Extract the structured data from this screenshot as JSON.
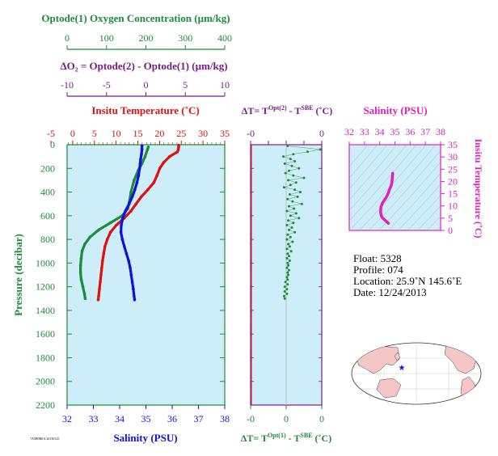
{
  "colors": {
    "green": "#1e8a3a",
    "purple": "#7a1a8a",
    "red": "#e01010",
    "blue": "#1010e0",
    "magenta": "#e020c0",
    "panel_bg": "#cdeef8",
    "land": "#f5c6c6"
  },
  "axes_text": {
    "oxygen_title": "Optode(1) Oxygen Concentration (µm/kg)",
    "oxygen_ticks": [
      "0",
      "100",
      "200",
      "300",
      "400"
    ],
    "delta_o2_title": "ΔO₂ = Optode(2) - Optode(1)   (µm/kg)",
    "delta_o2_ticks": [
      "-10",
      "-5",
      "0",
      "5",
      "10"
    ],
    "temp_title": "Insitu Temperature (˚C)",
    "temp_ticks": [
      "-5",
      "0",
      "5",
      "10",
      "15",
      "20",
      "25",
      "30",
      "35"
    ],
    "pressure_title": "Pressure (decibar)",
    "pressure_ticks": [
      "0",
      "200",
      "400",
      "600",
      "800",
      "1000",
      "1200",
      "1400",
      "1600",
      "1800",
      "2000",
      "2200"
    ],
    "salinity_bottom_title": "Salinity (PSU)",
    "salinity_bottom_ticks": [
      "32",
      "33",
      "34",
      "35",
      "36",
      "37",
      "38"
    ],
    "dt_top_title_a": "ΔT= T",
    "dt_top_title_sup1": "Opt(2)",
    "dt_top_title_mid": " - T",
    "dt_top_title_sup2": "SBE",
    "dt_top_title_end": " (˚C)",
    "dt_top_ticks": [
      "-0",
      "0"
    ],
    "dt_bottom_title_a": "ΔT= T",
    "dt_bottom_title_sup1": "Opt(1)",
    "dt_bottom_title_mid": " - T",
    "dt_bottom_title_sup2": "SBE",
    "dt_bottom_title_end": " (˚C)",
    "dt_bottom_ticks": [
      "-0",
      "0",
      "0"
    ],
    "ts_salinity_title": "Salinity (PSU)",
    "ts_salinity_ticks": [
      "32",
      "33",
      "34",
      "35",
      "36",
      "37",
      "38"
    ],
    "ts_temp_title": "Insitu Temperature (˚C)",
    "ts_temp_ticks": [
      "0",
      "5",
      "10",
      "15",
      "20",
      "25",
      "30",
      "35"
    ],
    "tiny_label": "7A5B9REA 20130125"
  },
  "float_info": {
    "float": "Float:  5328",
    "profile": "Profile:  074",
    "location": "Location:  25.9˚N  145.6˚E",
    "date": "Date:  12/24/2013"
  },
  "chart_data": [
    {
      "type": "line",
      "title": "",
      "ylabel": "Pressure (decibar)",
      "ylim": [
        2200,
        0
      ],
      "series": [
        {
          "name": "Optode(1) Oxygen Concentration (µm/kg)",
          "color": "#1e8a3a",
          "xlim": [
            0,
            400
          ],
          "points": [
            [
              206,
              20
            ],
            [
              204,
              40
            ],
            [
              198,
              100
            ],
            [
              190,
              160
            ],
            [
              180,
              220
            ],
            [
              170,
              300
            ],
            [
              162,
              400
            ],
            [
              158,
              480
            ],
            [
              154,
              540
            ],
            [
              140,
              600
            ],
            [
              110,
              660
            ],
            [
              80,
              720
            ],
            [
              58,
              780
            ],
            [
              45,
              840
            ],
            [
              38,
              900
            ],
            [
              36,
              960
            ],
            [
              34,
              1020
            ],
            [
              34,
              1080
            ],
            [
              36,
              1140
            ],
            [
              40,
              1200
            ],
            [
              44,
              1260
            ],
            [
              46,
              1300
            ]
          ]
        },
        {
          "name": "Insitu Temperature (˚C)",
          "color": "#e01010",
          "xlim": [
            -5,
            35
          ],
          "points": [
            [
              23.3,
              5
            ],
            [
              23.3,
              20
            ],
            [
              23.2,
              40
            ],
            [
              23.0,
              60
            ],
            [
              21.0,
              100
            ],
            [
              19.5,
              150
            ],
            [
              18.5,
              200
            ],
            [
              17.8,
              260
            ],
            [
              17.0,
              320
            ],
            [
              15.5,
              380
            ],
            [
              13.8,
              440
            ],
            [
              12.5,
              500
            ],
            [
              11.2,
              560
            ],
            [
              9.5,
              620
            ],
            [
              7.5,
              680
            ],
            [
              6.0,
              740
            ],
            [
              5.2,
              800
            ],
            [
              4.6,
              860
            ],
            [
              4.3,
              920
            ],
            [
              4.0,
              980
            ],
            [
              3.8,
              1040
            ],
            [
              3.6,
              1100
            ],
            [
              3.4,
              1160
            ],
            [
              3.2,
              1220
            ],
            [
              3.0,
              1280
            ],
            [
              2.9,
              1310
            ]
          ]
        },
        {
          "name": "Salinity (PSU)",
          "color": "#1010e0",
          "xlim": [
            32,
            38
          ],
          "points": [
            [
              34.85,
              10
            ],
            [
              34.85,
              40
            ],
            [
              34.83,
              80
            ],
            [
              34.8,
              120
            ],
            [
              34.78,
              160
            ],
            [
              34.76,
              200
            ],
            [
              34.72,
              260
            ],
            [
              34.66,
              320
            ],
            [
              34.58,
              380
            ],
            [
              34.48,
              440
            ],
            [
              34.36,
              500
            ],
            [
              34.22,
              560
            ],
            [
              34.12,
              620
            ],
            [
              34.06,
              680
            ],
            [
              34.05,
              740
            ],
            [
              34.1,
              800
            ],
            [
              34.18,
              860
            ],
            [
              34.26,
              920
            ],
            [
              34.34,
              980
            ],
            [
              34.4,
              1040
            ],
            [
              34.44,
              1100
            ],
            [
              34.48,
              1160
            ],
            [
              34.52,
              1220
            ],
            [
              34.55,
              1280
            ],
            [
              34.57,
              1310
            ]
          ]
        }
      ]
    },
    {
      "type": "scatter",
      "title": "",
      "xlabel": "ΔT= T(Opt(1)) - T(SBE) (˚C)",
      "ylim": [
        2200,
        0
      ],
      "xlim": [
        -0.05,
        0.05
      ],
      "series": [
        {
          "name": "ΔT Opt(1)",
          "color": "#1e8a3a",
          "points": [
            [
              0.002,
              10
            ],
            [
              0.048,
              40
            ],
            [
              0.03,
              60
            ],
            [
              0.01,
              80
            ],
            [
              -0.004,
              100
            ],
            [
              0.006,
              120
            ],
            [
              0.012,
              140
            ],
            [
              -0.002,
              160
            ],
            [
              0.008,
              180
            ],
            [
              0.018,
              200
            ],
            [
              0.004,
              220
            ],
            [
              -0.001,
              240
            ],
            [
              0.01,
              260
            ],
            [
              0.025,
              280
            ],
            [
              0.003,
              300
            ],
            [
              0.014,
              320
            ],
            [
              0.006,
              340
            ],
            [
              -0.003,
              360
            ],
            [
              0.012,
              380
            ],
            [
              0.02,
              400
            ],
            [
              0.005,
              420
            ],
            [
              0.016,
              440
            ],
            [
              0.002,
              460
            ],
            [
              0.009,
              480
            ],
            [
              0.022,
              500
            ],
            [
              0.004,
              520
            ],
            [
              0.011,
              540
            ],
            [
              0.001,
              560
            ],
            [
              0.014,
              580
            ],
            [
              0.006,
              600
            ],
            [
              0.018,
              620
            ],
            [
              0.003,
              640
            ],
            [
              0.01,
              660
            ],
            [
              0.001,
              680
            ],
            [
              0.008,
              700
            ],
            [
              0.004,
              720
            ],
            [
              0.012,
              740
            ],
            [
              0.002,
              760
            ],
            [
              0.006,
              780
            ],
            [
              0.001,
              800
            ],
            [
              0.009,
              820
            ],
            [
              0.003,
              840
            ],
            [
              0.005,
              860
            ],
            [
              0.001,
              880
            ],
            [
              0.007,
              900
            ],
            [
              0.002,
              920
            ],
            [
              0.004,
              940
            ],
            [
              0.001,
              960
            ],
            [
              0.005,
              980
            ],
            [
              0.002,
              1000
            ],
            [
              0.003,
              1020
            ],
            [
              0.001,
              1040
            ],
            [
              0.004,
              1060
            ],
            [
              0.002,
              1080
            ],
            [
              0.003,
              1100
            ],
            [
              0.001,
              1120
            ],
            [
              0.002,
              1140
            ],
            [
              -0.001,
              1160
            ],
            [
              0.002,
              1180
            ],
            [
              -0.002,
              1200
            ],
            [
              0.001,
              1220
            ],
            [
              -0.002,
              1240
            ],
            [
              0.001,
              1260
            ],
            [
              -0.003,
              1280
            ],
            [
              -0.002,
              1300
            ]
          ]
        }
      ]
    },
    {
      "type": "line",
      "title": "",
      "xlabel": "Salinity (PSU)",
      "ylabel": "Insitu Temperature (˚C)",
      "xlim": [
        32,
        38
      ],
      "ylim": [
        0,
        35
      ],
      "series": [
        {
          "name": "T-S profile",
          "color": "#e020c0",
          "points": [
            [
              34.57,
              2.9
            ],
            [
              34.52,
              3.2
            ],
            [
              34.45,
              3.6
            ],
            [
              34.38,
              4.0
            ],
            [
              34.28,
              4.6
            ],
            [
              34.18,
              5.2
            ],
            [
              34.1,
              6.0
            ],
            [
              34.06,
              7.5
            ],
            [
              34.08,
              9.5
            ],
            [
              34.18,
              11.2
            ],
            [
              34.32,
              12.5
            ],
            [
              34.46,
              13.8
            ],
            [
              34.58,
              15.5
            ],
            [
              34.66,
              17.0
            ],
            [
              34.72,
              17.8
            ],
            [
              34.76,
              18.5
            ],
            [
              34.8,
              19.5
            ],
            [
              34.82,
              21.0
            ],
            [
              34.85,
              23.0
            ],
            [
              34.85,
              23.3
            ]
          ]
        }
      ]
    }
  ]
}
